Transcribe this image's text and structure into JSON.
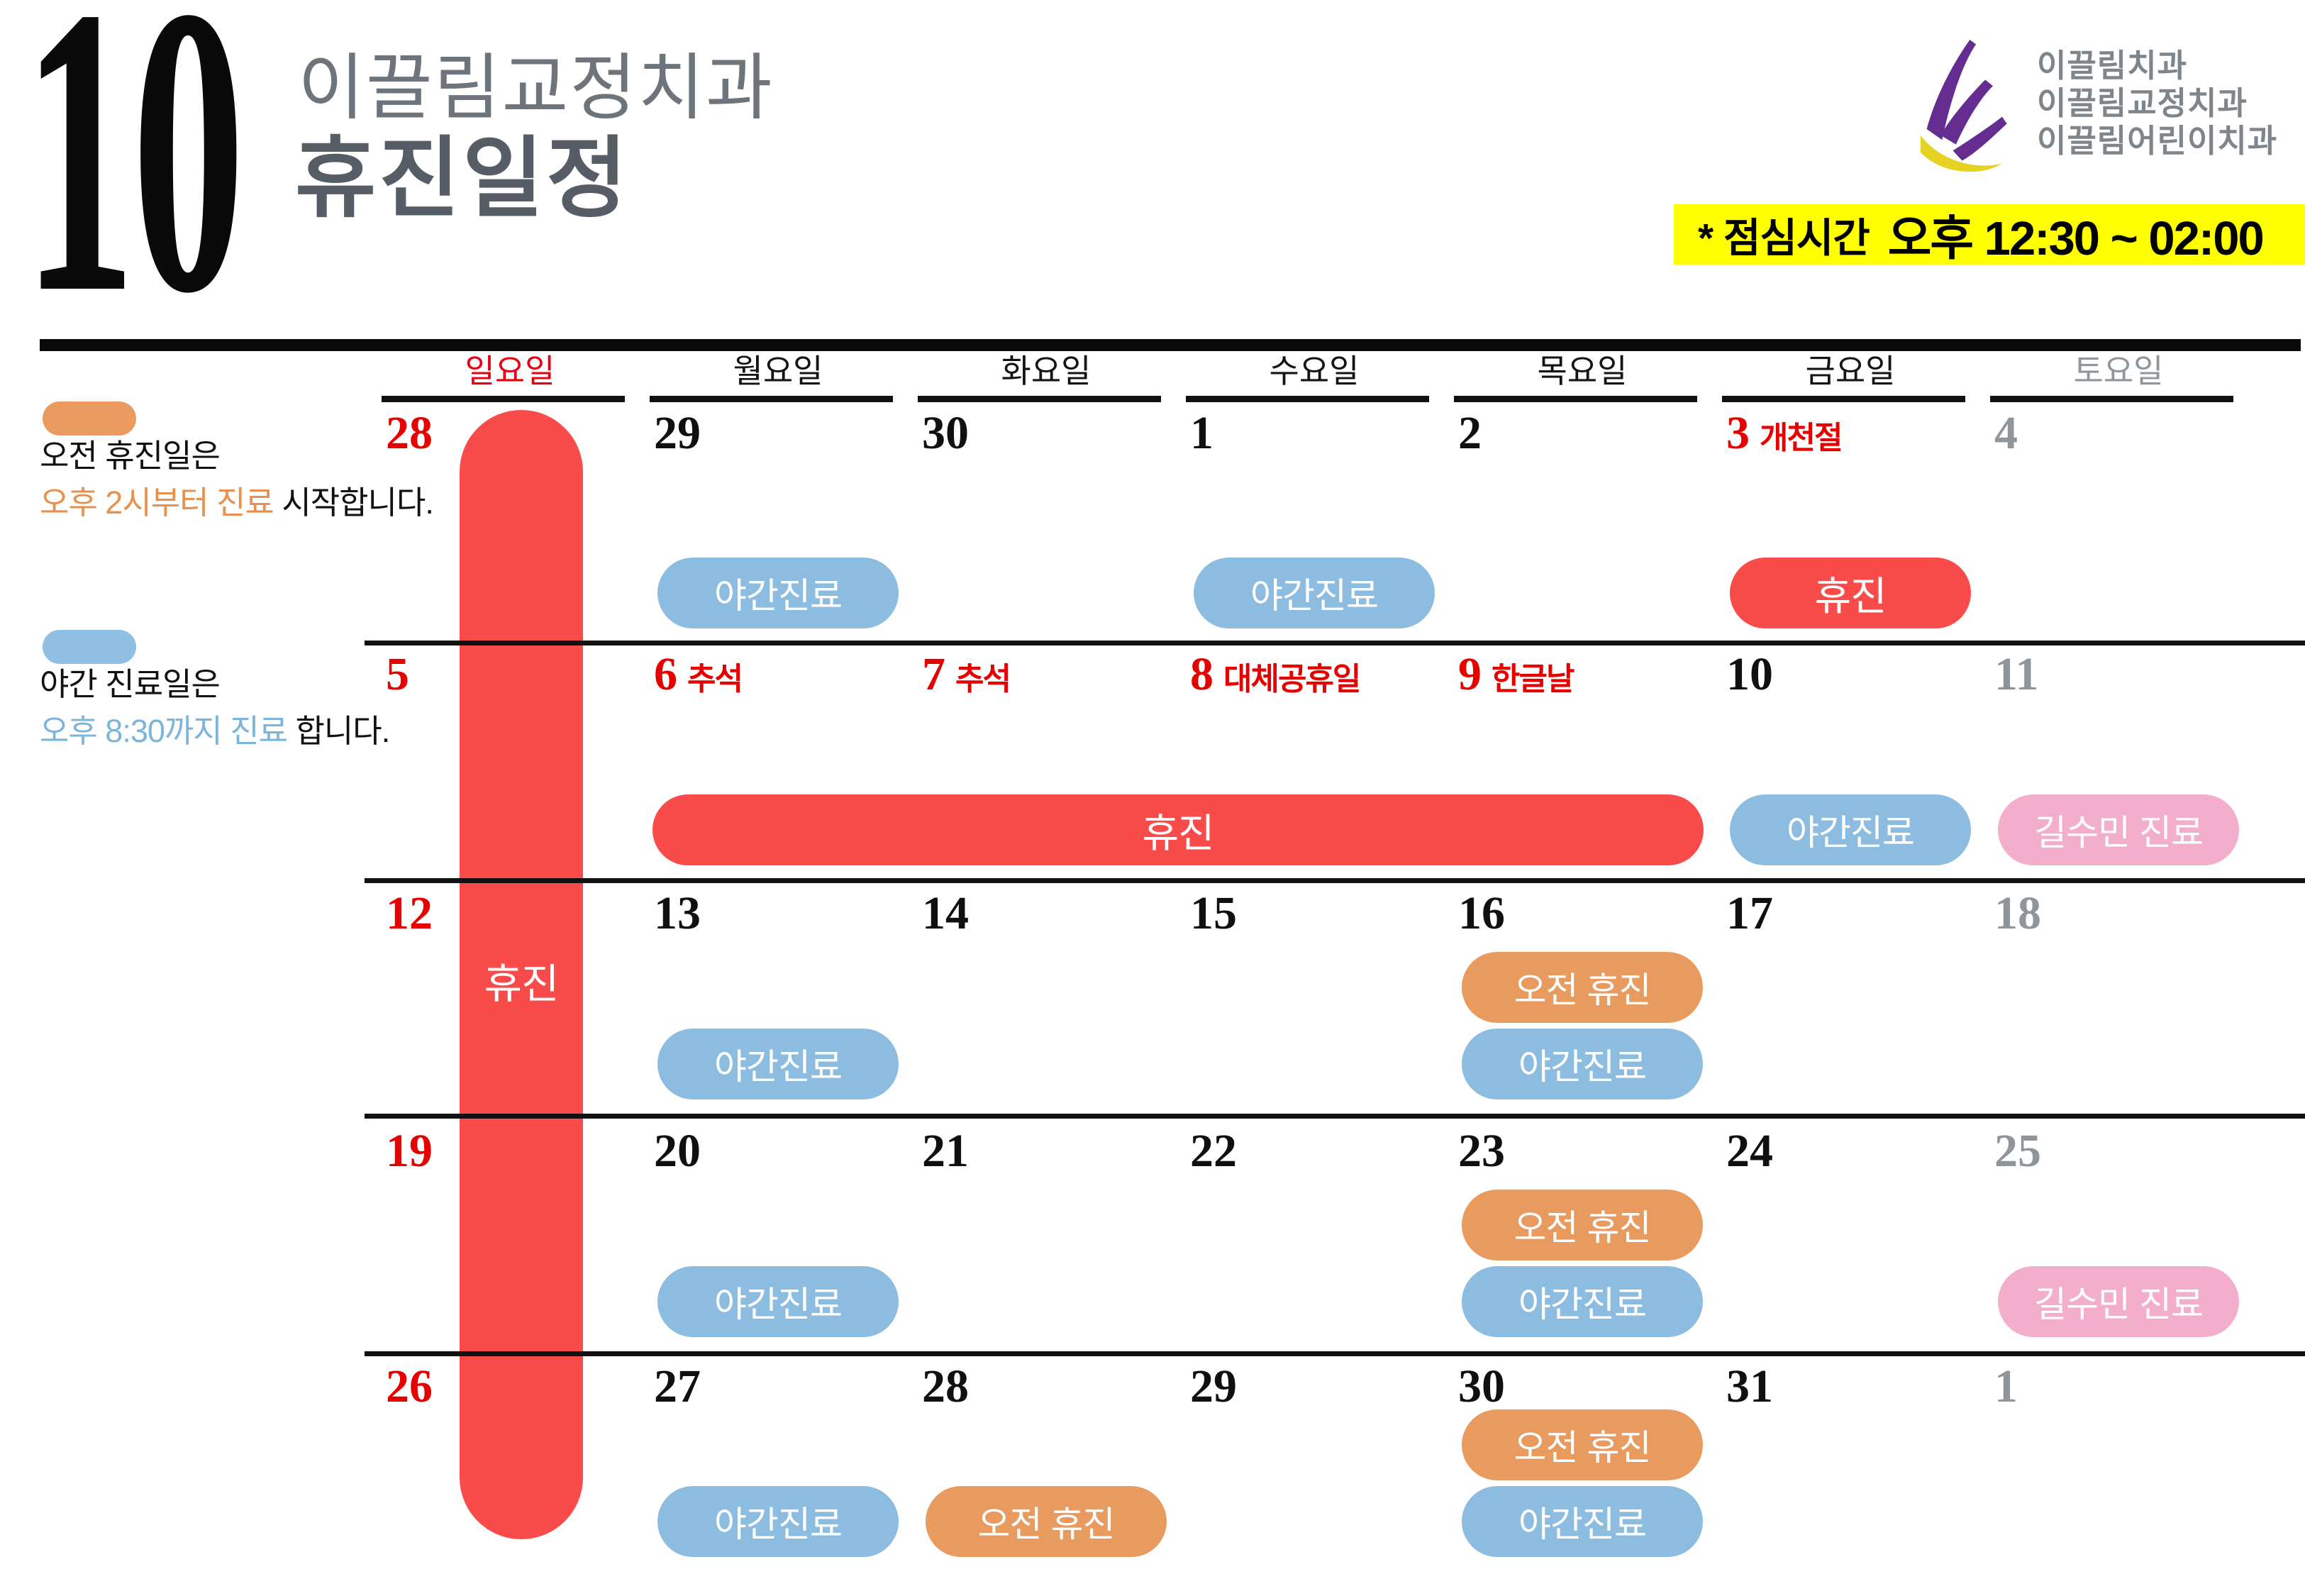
{
  "header": {
    "month": "10",
    "clinic": "이끌림교정치과",
    "title": "휴진일정",
    "logo_lines": [
      "이끌림치과",
      "이끌림교정치과",
      "이끌림어린이치과"
    ],
    "lunch_label": "* 점심시간",
    "lunch_time": "오후 12:30 ~ 02:00"
  },
  "legend": {
    "morning": {
      "line1": "오전 휴진일은",
      "highlight": "오후 2시부터 진료",
      "rest": " 시작합니다."
    },
    "night": {
      "line1": "야간 진료일은",
      "highlight": "오후 8:30까지 진료",
      "rest": " 합니다."
    }
  },
  "weekdays": [
    {
      "label": "일요일",
      "type": "sun"
    },
    {
      "label": "월요일",
      "type": "weekday"
    },
    {
      "label": "화요일",
      "type": "weekday"
    },
    {
      "label": "수요일",
      "type": "weekday"
    },
    {
      "label": "목요일",
      "type": "weekday"
    },
    {
      "label": "금요일",
      "type": "weekday"
    },
    {
      "label": "토요일",
      "type": "sat"
    }
  ],
  "badge_types": {
    "night": {
      "label": "야간진료",
      "color": "#8cbde0"
    },
    "morning": {
      "label": "오전 휴진",
      "color": "#e99a5f"
    },
    "closed": {
      "label": "휴진",
      "color": "#fa4b4b"
    },
    "doctor": {
      "label": "길수민 진료",
      "color": "#f3aecb"
    }
  },
  "banners": {
    "sunday": {
      "label": "휴진"
    },
    "chuseok": {
      "label": "휴진"
    }
  },
  "weeks": [
    [
      {
        "date": "28",
        "type": "sun",
        "holiday": "",
        "badges": []
      },
      {
        "date": "29",
        "type": "weekday",
        "holiday": "",
        "badges": [
          "night"
        ]
      },
      {
        "date": "30",
        "type": "weekday",
        "holiday": "",
        "badges": []
      },
      {
        "date": "1",
        "type": "weekday",
        "holiday": "",
        "badges": [
          "night"
        ]
      },
      {
        "date": "2",
        "type": "weekday",
        "holiday": "",
        "badges": []
      },
      {
        "date": "3",
        "type": "holiday",
        "holiday": "개천절",
        "badges": [
          "closed"
        ]
      },
      {
        "date": "4",
        "type": "sat",
        "holiday": "",
        "badges": []
      }
    ],
    [
      {
        "date": "5",
        "type": "sun",
        "holiday": "",
        "badges": []
      },
      {
        "date": "6",
        "type": "holiday",
        "holiday": "추석",
        "badges": []
      },
      {
        "date": "7",
        "type": "holiday",
        "holiday": "추석",
        "badges": []
      },
      {
        "date": "8",
        "type": "holiday",
        "holiday": "대체공휴일",
        "badges": []
      },
      {
        "date": "9",
        "type": "holiday",
        "holiday": "한글날",
        "badges": []
      },
      {
        "date": "10",
        "type": "weekday",
        "holiday": "",
        "badges": [
          "night"
        ]
      },
      {
        "date": "11",
        "type": "sat",
        "holiday": "",
        "badges": [
          "doctor"
        ]
      }
    ],
    [
      {
        "date": "12",
        "type": "sun",
        "holiday": "",
        "badges": []
      },
      {
        "date": "13",
        "type": "weekday",
        "holiday": "",
        "badges": [
          "night"
        ]
      },
      {
        "date": "14",
        "type": "weekday",
        "holiday": "",
        "badges": []
      },
      {
        "date": "15",
        "type": "weekday",
        "holiday": "",
        "badges": []
      },
      {
        "date": "16",
        "type": "weekday",
        "holiday": "",
        "badges": [
          "morning",
          "night"
        ]
      },
      {
        "date": "17",
        "type": "weekday",
        "holiday": "",
        "badges": []
      },
      {
        "date": "18",
        "type": "sat",
        "holiday": "",
        "badges": []
      }
    ],
    [
      {
        "date": "19",
        "type": "sun",
        "holiday": "",
        "badges": []
      },
      {
        "date": "20",
        "type": "weekday",
        "holiday": "",
        "badges": [
          "night"
        ]
      },
      {
        "date": "21",
        "type": "weekday",
        "holiday": "",
        "badges": []
      },
      {
        "date": "22",
        "type": "weekday",
        "holiday": "",
        "badges": []
      },
      {
        "date": "23",
        "type": "weekday",
        "holiday": "",
        "badges": [
          "morning",
          "night"
        ]
      },
      {
        "date": "24",
        "type": "weekday",
        "holiday": "",
        "badges": []
      },
      {
        "date": "25",
        "type": "sat",
        "holiday": "",
        "badges": [
          "doctor"
        ]
      }
    ],
    [
      {
        "date": "26",
        "type": "sun",
        "holiday": "",
        "badges": []
      },
      {
        "date": "27",
        "type": "weekday",
        "holiday": "",
        "badges": [
          "night"
        ]
      },
      {
        "date": "28",
        "type": "weekday",
        "holiday": "",
        "badges": [
          "morning"
        ]
      },
      {
        "date": "29",
        "type": "weekday",
        "holiday": "",
        "badges": []
      },
      {
        "date": "30",
        "type": "weekday",
        "holiday": "",
        "badges": [
          "morning",
          "night"
        ]
      },
      {
        "date": "31",
        "type": "weekday",
        "holiday": "",
        "badges": []
      },
      {
        "date": "1",
        "type": "sat",
        "holiday": "",
        "badges": []
      }
    ]
  ],
  "colors": {
    "closed_red": "#fa4b4b",
    "date_red": "#e60000",
    "night_blue": "#8cbde0",
    "morning_orange": "#e99a5f",
    "doctor_pink": "#f3aecb",
    "saturday_gray": "#8e959b",
    "lunch_yellow": "#ffff00",
    "logo_purple": "#662d91",
    "logo_gold": "#e6d222"
  }
}
